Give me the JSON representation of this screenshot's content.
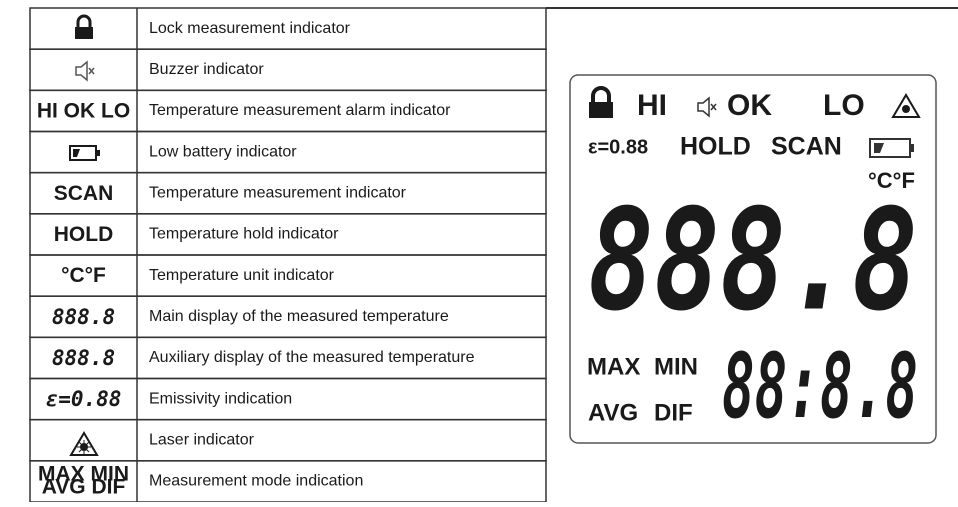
{
  "table": {
    "rows": [
      {
        "description": "Lock measurement indicator"
      },
      {
        "description": "Buzzer indicator"
      },
      {
        "symbol": "HI OK LO",
        "description": "Temperature measurement alarm indicator"
      },
      {
        "description": "Low battery indicator"
      },
      {
        "symbol": "SCAN",
        "description": "Temperature measurement indicator"
      },
      {
        "symbol": "HOLD",
        "description": "Temperature hold indicator"
      },
      {
        "symbol": "°C°F",
        "description": "Temperature unit indicator"
      },
      {
        "symbol": "888.8",
        "description": "Main display of the measured temperature"
      },
      {
        "symbol": "888.8",
        "description": "Auxiliary display of the measured temperature"
      },
      {
        "symbol": "ε=0.88",
        "description": "Emissivity indication"
      },
      {
        "description": "Laser indicator"
      },
      {
        "symbol": "MAX MIN AVG DIF",
        "description": "Measurement mode indication"
      }
    ]
  },
  "display": {
    "hi": "HI",
    "ok": "OK",
    "lo": "LO",
    "emissivity": "ε=0.88",
    "hold": "HOLD",
    "scan": "SCAN",
    "units": "°C°F",
    "main": "888.8",
    "max": "MAX",
    "min": "MIN",
    "avg": "AVG",
    "dif": "DIF",
    "aux": "88:8.8"
  }
}
